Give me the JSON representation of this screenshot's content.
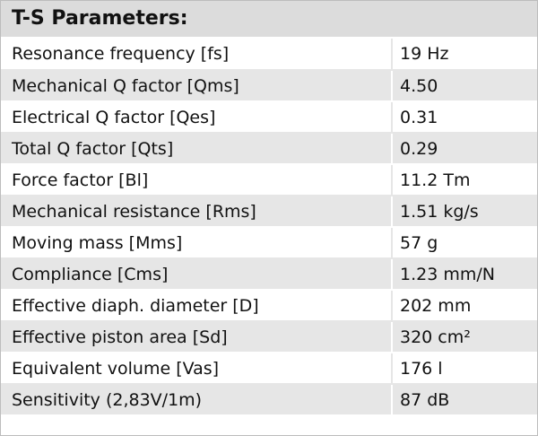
{
  "header": {
    "title": "T-S Parameters:"
  },
  "table": {
    "rows": [
      [
        "Resonance frequency [fs]",
        "19 Hz"
      ],
      [
        "Mechanical Q factor [Qms]",
        "4.50"
      ],
      [
        "Electrical Q factor [Qes]",
        "0.31"
      ],
      [
        "Total Q factor [Qts]",
        "0.29"
      ],
      [
        "Force factor [Bl]",
        "11.2 Tm"
      ],
      [
        "Mechanical resistance [Rms]",
        "1.51 kg/s"
      ],
      [
        "Moving mass [Mms]",
        "57 g"
      ],
      [
        "Compliance [Cms]",
        "1.23 mm/N"
      ],
      [
        "Effective diaph. diameter [D]",
        "202 mm"
      ],
      [
        "Effective piston area [Sd]",
        "320 cm²"
      ],
      [
        "Equivalent volume [Vas]",
        "176 l"
      ],
      [
        "Sensitivity (2,83V/1m)",
        "87 dB"
      ]
    ]
  }
}
